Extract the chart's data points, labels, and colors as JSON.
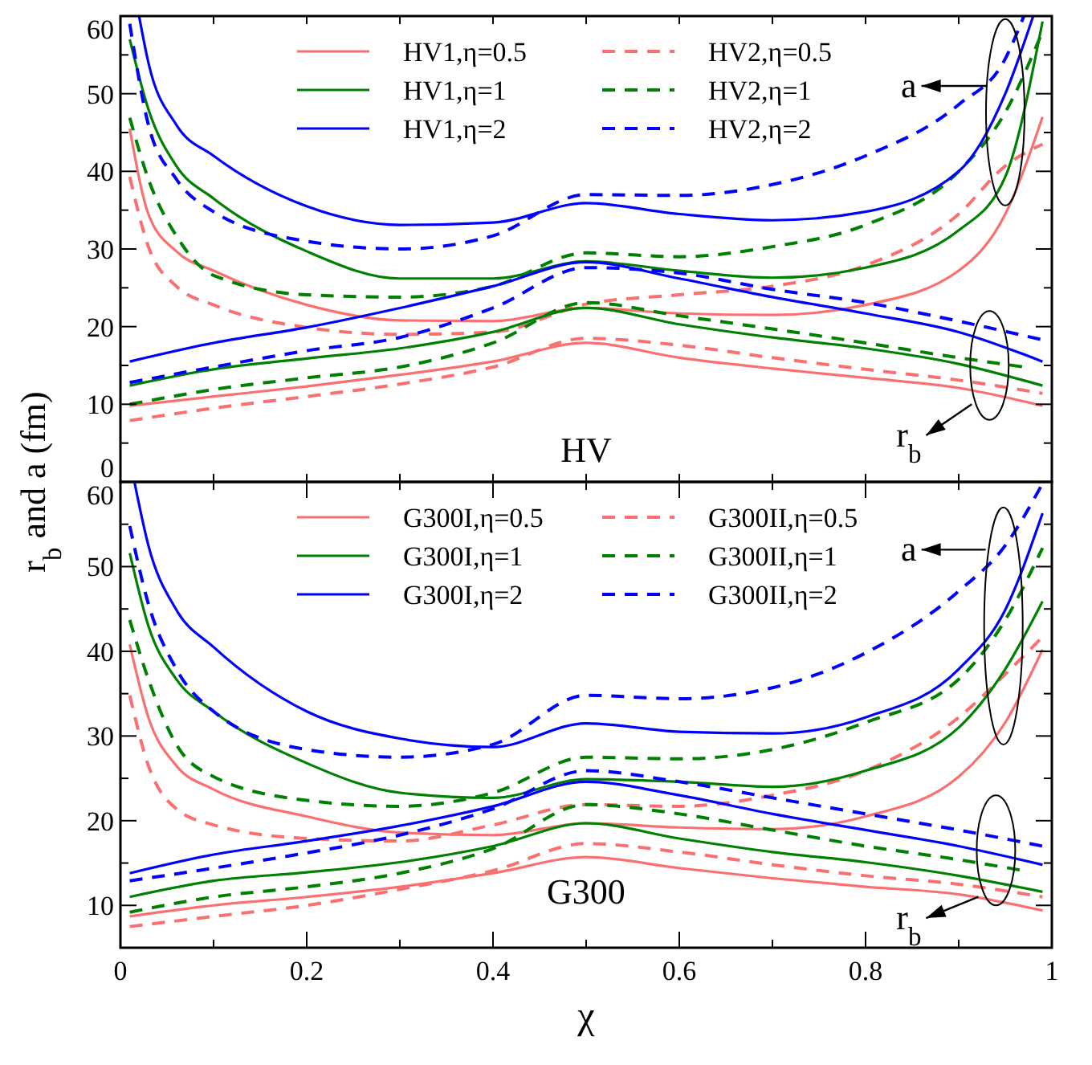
{
  "chart_data": [
    {
      "type": "line",
      "ylabel": "r$_{b}$ and a (fm)",
      "annotations": [
        {
          "text": "a",
          "x": 0.95,
          "y": 47.6
        },
        {
          "text": "r$_{b}$",
          "x": 0.933,
          "y": 15
        },
        "HV"
      ],
      "legend": "top",
      "tick_labels": "y",
      "xlim": [
        0,
        1
      ],
      "ylim": [
        0,
        60
      ],
      "xticks": [
        {
          "value": 0,
          "label": null
        },
        {
          "value": 0.1,
          "label": null
        },
        {
          "value": 0.2,
          "label": null
        },
        {
          "value": 0.3,
          "label": null
        },
        {
          "value": 0.4,
          "label": null
        },
        {
          "value": 0.5,
          "label": null
        },
        {
          "value": 0.6,
          "label": null
        },
        {
          "value": 0.7,
          "label": null
        },
        {
          "value": 0.8,
          "label": null
        },
        {
          "value": 0.9,
          "label": null
        },
        {
          "value": 1,
          "label": null
        }
      ],
      "yticks": [
        0,
        {
          "value": 5,
          "label": null
        },
        10,
        {
          "value": 15,
          "label": null
        },
        20,
        {
          "value": 25,
          "label": null
        },
        30,
        {
          "value": 35,
          "label": null
        },
        40,
        {
          "value": 45,
          "label": null
        },
        50,
        {
          "value": 55,
          "label": null
        },
        60
      ],
      "x": [
        0.01,
        0.03,
        0.06,
        0.1,
        0.2,
        0.3,
        0.4,
        0.5,
        0.6,
        0.7,
        0.8,
        0.9,
        0.95,
        0.99
      ],
      "series": [
        {
          "name": "HV1,η=0.5",
          "color": "#fa7070",
          "line_style": "solid",
          "values": [
            45.5,
            34.5,
            29.7,
            27.2,
            22.8,
            20.8,
            20.7,
            22.4,
            21.7,
            21.5,
            22.8,
            27.2,
            34.5,
            47
          ]
        },
        {
          "name": "HV2,η=0.5",
          "color": "#fa7070",
          "line_style": "dashed",
          "values": [
            39.3,
            30.3,
            25.2,
            22.8,
            19.9,
            19,
            19.3,
            22.9,
            24.1,
            25.2,
            27.9,
            34.5,
            40.7,
            43.5
          ]
        },
        {
          "name": "HV1,η=1",
          "color": "#008000",
          "line_style": "solid",
          "values": [
            57,
            48,
            40.7,
            36.5,
            29.7,
            26.2,
            26.2,
            28.4,
            27.2,
            26.3,
            27.6,
            32.4,
            39.3,
            59.3
          ]
        },
        {
          "name": "HV2,η=1",
          "color": "#008000",
          "line_style": "dashed",
          "values": [
            46.9,
            39,
            31.7,
            26.6,
            24.1,
            23.8,
            25.2,
            29.5,
            29,
            30.3,
            33.1,
            40,
            47.6,
            58
          ]
        },
        {
          "name": "HV1,η=2",
          "color": "#0000ff",
          "line_style": "solid",
          "x": [
            0.02,
            0.03,
            0.06,
            0.1,
            0.2,
            0.3,
            0.4,
            0.5,
            0.6,
            0.7,
            0.8,
            0.9,
            0.95,
            0.98
          ],
          "values": [
            60,
            54,
            46,
            42,
            35.5,
            33.1,
            33.4,
            35.9,
            34.5,
            33.7,
            34.8,
            40,
            50,
            60
          ]
        },
        {
          "name": "HV2,η=2",
          "color": "#0000ff",
          "line_style": "dashed",
          "x": [
            0.01,
            0.03,
            0.06,
            0.1,
            0.2,
            0.3,
            0.4,
            0.5,
            0.6,
            0.7,
            0.8,
            0.9,
            0.95,
            0.97
          ],
          "values": [
            59,
            46,
            39,
            34.8,
            31,
            30,
            31.7,
            37,
            36.9,
            38.3,
            42,
            48.6,
            54.5,
            60
          ]
        },
        {
          "color": "#fa7070",
          "line_style": "solid",
          "x": [
            0.01,
            0.1,
            0.2,
            0.3,
            0.4,
            0.5,
            0.6,
            0.7,
            0.8,
            0.9,
            0.99
          ],
          "values": [
            9.8,
            11,
            12.3,
            13.8,
            15.5,
            17.9,
            16,
            14.6,
            13.4,
            12.1,
            9.8
          ]
        },
        {
          "color": "#fa7070",
          "line_style": "dashed",
          "x": [
            0.01,
            0.1,
            0.2,
            0.3,
            0.4,
            0.5,
            0.6,
            0.7,
            0.8,
            0.9,
            0.99
          ],
          "values": [
            7.9,
            9.5,
            11,
            12.6,
            14.8,
            18.5,
            17.6,
            16,
            14.5,
            13.1,
            11.4
          ]
        },
        {
          "color": "#008000",
          "line_style": "solid",
          "x": [
            0.01,
            0.1,
            0.2,
            0.3,
            0.4,
            0.5,
            0.6,
            0.7,
            0.8,
            0.9,
            0.99
          ],
          "values": [
            12.4,
            14.5,
            15.9,
            17.2,
            19.3,
            22.4,
            20.3,
            18.6,
            17.2,
            15.2,
            12.4
          ]
        },
        {
          "color": "#008000",
          "line_style": "dashed",
          "x": [
            0.01,
            0.1,
            0.2,
            0.3,
            0.4,
            0.5,
            0.6,
            0.7,
            0.8,
            0.9,
            0.97
          ],
          "values": [
            10,
            11.9,
            13.4,
            14.8,
            17.9,
            23.1,
            21.4,
            19.7,
            17.9,
            16,
            14.8
          ]
        },
        {
          "color": "#0000ff",
          "line_style": "solid",
          "x": [
            0.01,
            0.1,
            0.2,
            0.3,
            0.4,
            0.5,
            0.6,
            0.7,
            0.8,
            0.9,
            0.99
          ],
          "values": [
            15.5,
            17.9,
            19.9,
            22.4,
            25.2,
            28.3,
            26.2,
            23.8,
            21.7,
            19.3,
            15.5
          ]
        },
        {
          "color": "#0000ff",
          "line_style": "dashed",
          "x": [
            0.01,
            0.1,
            0.2,
            0.3,
            0.4,
            0.5,
            0.6,
            0.7,
            0.8,
            0.9,
            0.99
          ],
          "values": [
            12.8,
            14.8,
            16.9,
            18.6,
            22.4,
            27.6,
            26.9,
            24.8,
            23.1,
            20.7,
            18.3
          ]
        }
      ]
    },
    {
      "type": "line",
      "xlabel": "χ",
      "annotations": [
        {
          "text": "a",
          "x": 0.948,
          "y": 43
        },
        {
          "text": "r$_{b}$",
          "x": 0.94,
          "y": 16.5
        },
        "G300"
      ],
      "legend": "top",
      "xlim": [
        0,
        1
      ],
      "ylim": [
        5,
        60
      ],
      "xticks": [
        0,
        {
          "value": 0.1,
          "label": null
        },
        0.2,
        {
          "value": 0.3,
          "label": null
        },
        0.4,
        {
          "value": 0.5,
          "label": null
        },
        0.6,
        {
          "value": 0.7,
          "label": null
        },
        0.8,
        {
          "value": 0.9,
          "label": null
        },
        1
      ],
      "yticks": [
        10,
        {
          "value": 15,
          "label": null
        },
        20,
        {
          "value": 25,
          "label": null
        },
        30,
        {
          "value": 35,
          "label": null
        },
        40,
        {
          "value": 45,
          "label": null
        },
        50,
        {
          "value": 55,
          "label": null
        },
        60
      ],
      "x": [
        0.01,
        0.03,
        0.06,
        0.1,
        0.2,
        0.3,
        0.4,
        0.5,
        0.6,
        0.7,
        0.8,
        0.9,
        0.95,
        0.99
      ],
      "series": [
        {
          "name": "G300I,η=0.5",
          "color": "#fa7070",
          "line_style": "solid",
          "values": [
            40.8,
            32.2,
            26.5,
            23.7,
            20.5,
            18.6,
            18.3,
            19.7,
            19.2,
            19,
            20.5,
            25.2,
            31.6,
            40.2
          ]
        },
        {
          "name": "G300II,η=0.5",
          "color": "#fa7070",
          "line_style": "dashed",
          "values": [
            34.8,
            26.5,
            21.4,
            19.5,
            17.9,
            17.6,
            19.5,
            21.9,
            21.7,
            23,
            25.9,
            32.2,
            37.3,
            41.7
          ]
        },
        {
          "name": "G300I,η=1",
          "color": "#008000",
          "line_style": "solid",
          "values": [
            51.6,
            43,
            36.7,
            32.9,
            26.8,
            23.3,
            22.7,
            24.9,
            24.6,
            24,
            25.9,
            31,
            37.9,
            45.9
          ]
        },
        {
          "name": "G300II,η=1",
          "color": "#008000",
          "line_style": "dashed",
          "values": [
            43.7,
            36.7,
            29,
            25.2,
            22.4,
            21.7,
            23.3,
            27.5,
            27.3,
            28.4,
            31.6,
            36.7,
            43.7,
            52.2
          ]
        },
        {
          "name": "G300I,η=2",
          "color": "#0000ff",
          "line_style": "solid",
          "x": [
            0.015,
            0.03,
            0.06,
            0.1,
            0.2,
            0.3,
            0.4,
            0.5,
            0.6,
            0.7,
            0.8,
            0.9,
            0.95,
            0.99
          ],
          "values": [
            60,
            52.5,
            44.9,
            40.5,
            32.9,
            29.7,
            28.7,
            31.5,
            30.5,
            30.3,
            32.2,
            37.9,
            44.9,
            56.3
          ]
        },
        {
          "name": "G300II,η=2",
          "color": "#0000ff",
          "line_style": "dashed",
          "values": [
            54.8,
            45.6,
            37.9,
            32.9,
            28.4,
            27.5,
            29,
            34.8,
            34.4,
            35.7,
            39.8,
            47.1,
            52.5,
            59.8
          ]
        },
        {
          "color": "#fa7070",
          "line_style": "solid",
          "x": [
            0.01,
            0.1,
            0.2,
            0.3,
            0.4,
            0.5,
            0.6,
            0.7,
            0.8,
            0.9,
            0.99
          ],
          "values": [
            8.7,
            10,
            11,
            12.2,
            13.8,
            15.7,
            14.4,
            13.2,
            12.2,
            11.3,
            9.4
          ]
        },
        {
          "color": "#fa7070",
          "line_style": "dashed",
          "x": [
            0.01,
            0.1,
            0.2,
            0.3,
            0.4,
            0.5,
            0.6,
            0.7,
            0.8,
            0.9,
            0.99
          ],
          "values": [
            7.5,
            8.7,
            10,
            11.9,
            14.1,
            17.3,
            16.3,
            14.8,
            13.5,
            12.5,
            11
          ]
        },
        {
          "color": "#008000",
          "line_style": "solid",
          "x": [
            0.01,
            0.1,
            0.2,
            0.3,
            0.4,
            0.5,
            0.6,
            0.7,
            0.8,
            0.9,
            0.99
          ],
          "values": [
            11,
            12.9,
            13.9,
            15.1,
            17,
            19.7,
            17.9,
            16.3,
            15.1,
            13.5,
            11.6
          ]
        },
        {
          "color": "#008000",
          "line_style": "dashed",
          "x": [
            0.01,
            0.1,
            0.2,
            0.3,
            0.4,
            0.5,
            0.6,
            0.7,
            0.8,
            0.9,
            0.97
          ],
          "values": [
            9.2,
            11,
            12.2,
            13.8,
            16.7,
            21.9,
            20.8,
            18.9,
            17,
            15.4,
            14.1
          ]
        },
        {
          "color": "#0000ff",
          "line_style": "solid",
          "x": [
            0.01,
            0.1,
            0.2,
            0.3,
            0.4,
            0.5,
            0.6,
            0.7,
            0.8,
            0.9,
            0.99
          ],
          "values": [
            13.8,
            16,
            17.6,
            19.4,
            21.7,
            24.6,
            23,
            20.8,
            18.9,
            17,
            14.8
          ]
        },
        {
          "color": "#0000ff",
          "line_style": "dashed",
          "x": [
            0.01,
            0.1,
            0.2,
            0.3,
            0.4,
            0.5,
            0.6,
            0.7,
            0.8,
            0.9,
            0.99
          ],
          "values": [
            12.9,
            14.4,
            16.2,
            18.3,
            21.4,
            25.9,
            24.6,
            22.7,
            20.8,
            18.9,
            17
          ]
        }
      ]
    }
  ]
}
